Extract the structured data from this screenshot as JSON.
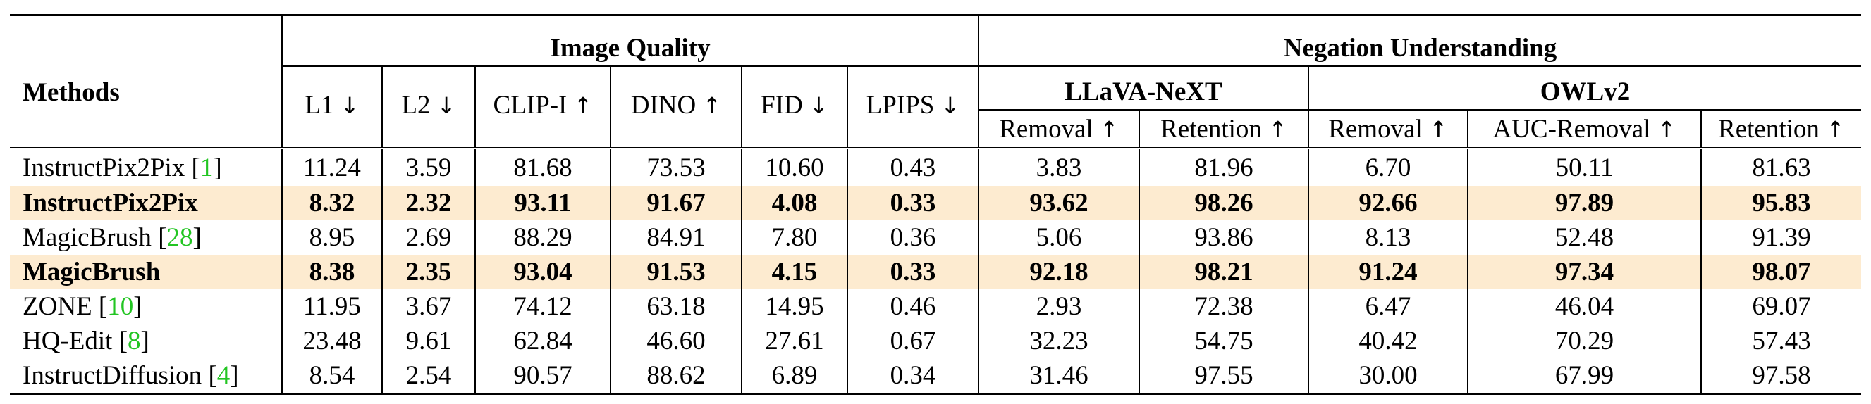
{
  "table": {
    "methods_header": "Methods",
    "group_image_quality": "Image Quality",
    "group_negation": "Negation Understanding",
    "subgroup_llava": "LLaVA-NeXT",
    "subgroup_owl": "OWLv2",
    "columns": {
      "l1": "L1",
      "l2": "L2",
      "clipi": "CLIP-I",
      "dino": "DINO",
      "fid": "FID",
      "lpips": "LPIPS",
      "llava_removal": "Removal",
      "llava_retention": "Retention",
      "owl_removal": "Removal",
      "owl_auc_removal": "AUC-Removal",
      "owl_retention": "Retention"
    },
    "arrows": {
      "down": "↓",
      "up": "↑"
    },
    "rows": [
      {
        "method": "InstructPix2Pix",
        "ref_open": " [",
        "ref": "1",
        "ref_close": "]",
        "highlight": false,
        "values": [
          "11.24",
          "3.59",
          "81.68",
          "73.53",
          "10.60",
          "0.43",
          "3.83",
          "81.96",
          "6.70",
          "50.11",
          "81.63"
        ]
      },
      {
        "method": "InstructPix2Pix",
        "ref_open": "",
        "ref": "",
        "ref_close": "",
        "highlight": true,
        "values": [
          "8.32",
          "2.32",
          "93.11",
          "91.67",
          "4.08",
          "0.33",
          "93.62",
          "98.26",
          "92.66",
          "97.89",
          "95.83"
        ]
      },
      {
        "method": "MagicBrush",
        "ref_open": " [",
        "ref": "28",
        "ref_close": "]",
        "highlight": false,
        "values": [
          "8.95",
          "2.69",
          "88.29",
          "84.91",
          "7.80",
          "0.36",
          "5.06",
          "93.86",
          "8.13",
          "52.48",
          "91.39"
        ]
      },
      {
        "method": "MagicBrush",
        "ref_open": "",
        "ref": "",
        "ref_close": "",
        "highlight": true,
        "values": [
          "8.38",
          "2.35",
          "93.04",
          "91.53",
          "4.15",
          "0.33",
          "92.18",
          "98.21",
          "91.24",
          "97.34",
          "98.07"
        ]
      },
      {
        "method": "ZONE",
        "ref_open": " [",
        "ref": "10",
        "ref_close": "]",
        "highlight": false,
        "values": [
          "11.95",
          "3.67",
          "74.12",
          "63.18",
          "14.95",
          "0.46",
          "2.93",
          "72.38",
          "6.47",
          "46.04",
          "69.07"
        ]
      },
      {
        "method": "HQ-Edit",
        "ref_open": " [",
        "ref": "8",
        "ref_close": "]",
        "highlight": false,
        "values": [
          "23.48",
          "9.61",
          "62.84",
          "46.60",
          "27.61",
          "0.67",
          "32.23",
          "54.75",
          "40.42",
          "70.29",
          "57.43"
        ]
      },
      {
        "method": "InstructDiffusion",
        "ref_open": " [",
        "ref": "4",
        "ref_close": "]",
        "highlight": false,
        "values": [
          "8.54",
          "2.54",
          "90.57",
          "88.62",
          "6.89",
          "0.34",
          "31.46",
          "97.55",
          "30.00",
          "67.99",
          "97.58"
        ]
      }
    ],
    "colors": {
      "highlight": "#fdebd0",
      "citation": "#22c522"
    }
  }
}
